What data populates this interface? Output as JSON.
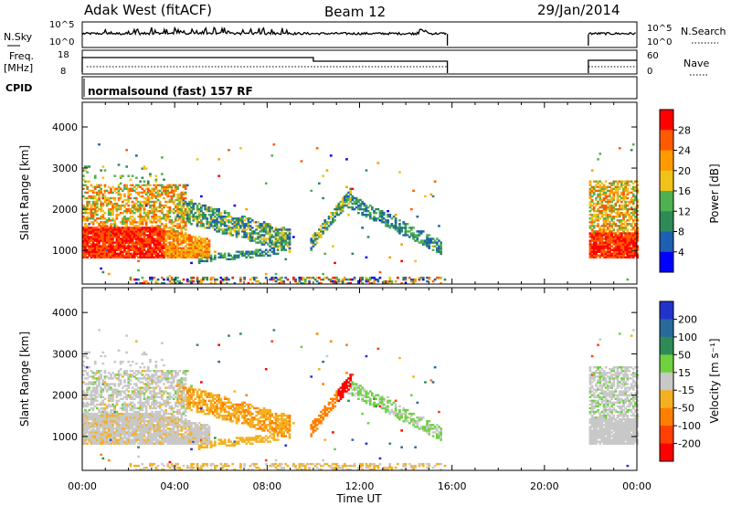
{
  "header": {
    "station": "Adak West (fitACF)",
    "beam": "Beam 12",
    "date": "29/Jan/2014"
  },
  "top_panels": {
    "nsky_label": "N.Sky",
    "nsky_ticks": [
      "10^5",
      "10^0"
    ],
    "nsearch_label": "N.Search",
    "nsearch_ticks": [
      "10^5",
      "10^0"
    ],
    "freq_label": "Freq.",
    "freq_unit": "[MHz]",
    "freq_ticks": [
      "18",
      "8"
    ],
    "nave_label": "Nave",
    "nave_ticks": [
      "60",
      "0"
    ],
    "cpid_label": "CPID",
    "cpid_text": "normalsound (fast) 157 RF"
  },
  "chart_data": [
    {
      "type": "heatmap",
      "panel": "power",
      "ylabel": "Slant Range [km]",
      "yticks": [
        1000,
        2000,
        3000,
        4000
      ],
      "ylim": [
        180,
        4600
      ],
      "xlim": [
        0,
        24
      ],
      "xticks": [
        "00:00",
        "04:00",
        "08:00",
        "12:00",
        "16:00",
        "20:00",
        "00:00"
      ],
      "colorbar": {
        "label": "Power [dB]",
        "ticks": [
          "4",
          "8",
          "12",
          "16",
          "20",
          "24",
          "28"
        ],
        "colors": [
          "#0000ff",
          "#1f5fb2",
          "#2e8b57",
          "#4fb14f",
          "#f0c21a",
          "#ff9a00",
          "#ff5a00",
          "#ff0000"
        ]
      },
      "data_gaps_hours": [
        [
          15.8,
          21.9
        ]
      ]
    },
    {
      "type": "heatmap",
      "panel": "velocity",
      "ylabel": "Slant Range [km]",
      "yticks": [
        1000,
        2000,
        3000,
        4000
      ],
      "ylim": [
        180,
        4600
      ],
      "xlim": [
        0,
        24
      ],
      "xticks": [
        "00:00",
        "04:00",
        "08:00",
        "12:00",
        "16:00",
        "20:00",
        "00:00"
      ],
      "xlabel": "Time UT",
      "colorbar": {
        "label": "Velocity [m s⁻¹]",
        "ticks": [
          "200",
          "100",
          "50",
          "15",
          "-15",
          "-50",
          "-100",
          "-200"
        ],
        "colors": [
          "#2233cc",
          "#2a6a9a",
          "#2e8b57",
          "#6fd040",
          "#c8c8c8",
          "#f4b020",
          "#ff8000",
          "#ff4000",
          "#ff0000"
        ]
      },
      "data_gaps_hours": [
        [
          15.8,
          21.9
        ]
      ]
    }
  ]
}
